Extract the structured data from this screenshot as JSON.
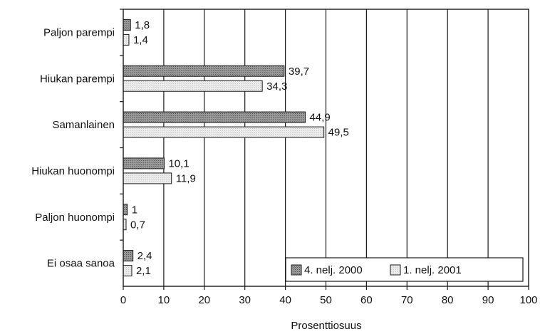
{
  "chart_data": {
    "type": "bar",
    "orientation": "horizontal",
    "title": "",
    "xlabel": "Prosenttiosuus",
    "ylabel": "",
    "xlim": [
      0,
      100
    ],
    "xticks": [
      0,
      10,
      20,
      30,
      40,
      50,
      60,
      70,
      80,
      90,
      100
    ],
    "grid": true,
    "legend_position": "bottom-right",
    "categories": [
      "Paljon parempi",
      "Hiukan parempi",
      "Samanlainen",
      "Hiukan huonompi",
      "Paljon huonompi",
      "Ei osaa sanoa"
    ],
    "series": [
      {
        "name": "4. nelj. 2000",
        "values": [
          1.8,
          39.7,
          44.9,
          10.1,
          1,
          2.4
        ],
        "labels": [
          "1,8",
          "39,7",
          "44,9",
          "10,1",
          "1",
          "2,4"
        ],
        "color": "#8c8c8c"
      },
      {
        "name": "1. nelj. 2001",
        "values": [
          1.4,
          34.3,
          49.5,
          11.9,
          0.7,
          2.1
        ],
        "labels": [
          "1,4",
          "34,3",
          "49,5",
          "11,9",
          "0,7",
          "2,1"
        ],
        "color": "#e4e4e4"
      }
    ]
  }
}
